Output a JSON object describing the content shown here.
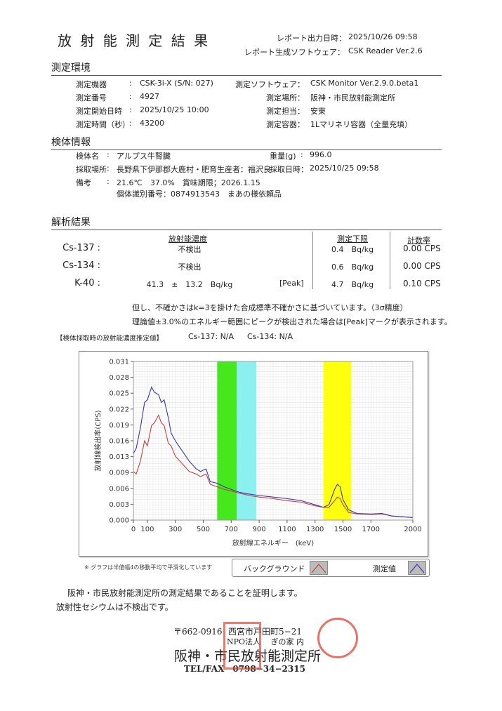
{
  "header": {
    "title": "放 射 能 測 定 結 果",
    "output_label": "レポート出力日時：",
    "output_value": "2025/10/26 09:58",
    "software_label": "レポート生成ソフトウェア：",
    "software_value": "CSK Reader Ver.2.6"
  },
  "env": {
    "title": "測定環境",
    "left": [
      {
        "label": "測定機器",
        "value": "CSK-3i-X (S/N: 027)"
      },
      {
        "label": "測定番号",
        "value": "4927"
      },
      {
        "label": "測定開始日時",
        "value": "2025/10/25 10:00"
      },
      {
        "label": "測定時間（秒）",
        "value": "43200"
      }
    ],
    "right": [
      {
        "label": "測定ソフトウェア：",
        "value": "CSK Monitor Ver.2.9.0.beta1"
      },
      {
        "label": "測定場所：",
        "value": "阪神・市民放射能測定所"
      },
      {
        "label": "測定担当：",
        "value": "安東"
      },
      {
        "label": "測定容器：",
        "value": "1Lマリネリ容器（全量充填）"
      }
    ]
  },
  "sample": {
    "title": "検体情報",
    "name_label": "検体名",
    "name": "アルプス牛腎臓",
    "weight_label": "重量(g)",
    "weight": "996.0",
    "place_label": "採取場所",
    "place": "長野県下伊那郡大鹿村・肥育生産者：福沢良",
    "date_label": "採取日時：",
    "date": "2025/10/25 09:58",
    "note_label": "備考",
    "note1": "21.6℃　37.0%　賞味期限；2026.1.15",
    "note2": "個体識別番号：0874913543　まあの様依頼品"
  },
  "results": {
    "title": "解析結果",
    "col_conc": "放射能濃度",
    "col_limit": "測定下限",
    "col_rate": "計数率",
    "rows": [
      {
        "nuclide": "Cs-137 :",
        "conc": "不検出",
        "peak": "",
        "limit": "0.4　Bq/kg",
        "rate": "0.00 CPS"
      },
      {
        "nuclide": "Cs-134 :",
        "conc": "不検出",
        "peak": "",
        "limit": "0.6　Bq/kg",
        "rate": "0.00 CPS"
      },
      {
        "nuclide": "K-40 :",
        "conc": "41.3　±　13.2　Bq/kg",
        "peak": "[Peak]",
        "limit": "4.7　Bq/kg",
        "rate": "0.10 CPS"
      }
    ],
    "note1": "但し、不確かさはk=3を掛けた合成標準不確かさに基づいています。（3σ精度）",
    "note2": "理論値±3.0%のエネルギー範囲にピークが検出された場合は[Peak]マークが表示されます。",
    "estimate_label": "【検体採取時の放射能濃度推定値】",
    "estimate_cs137": "Cs-137:  N/A",
    "estimate_cs134": "Cs-134:  N/A"
  },
  "chart_data": {
    "type": "line",
    "xlabel": "放射線エネルギー　(keV)",
    "ylabel": "放射線検出率(CPS)",
    "xlim": [
      0,
      2000
    ],
    "ylim": [
      0,
      0.031
    ],
    "grid": true,
    "xticks": [
      "0",
      "100",
      "300",
      "500",
      "700",
      "900",
      "1100",
      "1300",
      "1500",
      "1700",
      "2000"
    ],
    "yticks": [
      "0.000",
      "0.003",
      "0.006",
      "0.009",
      "0.013",
      "0.016",
      "0.019",
      "0.022",
      "0.025",
      "0.028",
      "0.031"
    ],
    "bands": [
      {
        "range": [
          600,
          740
        ],
        "color": "#44e81c"
      },
      {
        "range": [
          740,
          880
        ],
        "color": "#8cf0f0"
      },
      {
        "range": [
          1360,
          1560
        ],
        "color": "#ffff10"
      }
    ],
    "x": [
      0,
      20,
      50,
      80,
      100,
      130,
      150,
      180,
      200,
      220,
      250,
      270,
      300,
      350,
      400,
      450,
      480,
      520,
      550,
      600,
      650,
      700,
      750,
      800,
      850,
      900,
      1000,
      1100,
      1200,
      1300,
      1360,
      1400,
      1440,
      1460,
      1480,
      1500,
      1540,
      1600,
      1700,
      1780,
      1850,
      2000
    ],
    "series": [
      {
        "name": "測定値",
        "color": "#3838b0",
        "values": [
          0.013,
          0.014,
          0.018,
          0.023,
          0.0235,
          0.026,
          0.025,
          0.0245,
          0.023,
          0.0235,
          0.02,
          0.017,
          0.0155,
          0.0135,
          0.0115,
          0.01,
          0.0095,
          0.01,
          0.0075,
          0.0072,
          0.0065,
          0.006,
          0.0055,
          0.0052,
          0.005,
          0.0048,
          0.0045,
          0.0042,
          0.0038,
          0.003,
          0.0025,
          0.003,
          0.006,
          0.007,
          0.0065,
          0.004,
          0.002,
          0.0013,
          0.0012,
          0.0013,
          0.0008,
          0.0005
        ]
      },
      {
        "name": "バックグラウンド",
        "color": "#c84040",
        "values": [
          0.0095,
          0.009,
          0.0115,
          0.0155,
          0.0145,
          0.0185,
          0.019,
          0.0205,
          0.019,
          0.0185,
          0.015,
          0.0145,
          0.0125,
          0.011,
          0.0095,
          0.009,
          0.0085,
          0.009,
          0.007,
          0.0065,
          0.006,
          0.0057,
          0.0053,
          0.005,
          0.0047,
          0.0045,
          0.0042,
          0.0038,
          0.0035,
          0.0028,
          0.0025,
          0.0025,
          0.0038,
          0.0045,
          0.0042,
          0.003,
          0.0015,
          0.0012,
          0.0011,
          0.0012,
          0.0008,
          0.0005
        ]
      }
    ]
  },
  "chart_note": "※ グラフは半値幅4の移動平均で平滑化しています",
  "legend": {
    "background": "バックグラウンド",
    "measured": "測定値"
  },
  "footer": {
    "cert": "阪神・市民放射能測定所の測定結果であることを証明します。",
    "cesium": "放射性セシウムは不検出です。",
    "postal": "〒662-0916",
    "address": "西宮市戸田町5−21",
    "address2": "NPO法人　 ぎの家 内",
    "org": "阪神・市民放射能測定所",
    "tel": "TEL/FAX　0798−34−2315"
  }
}
